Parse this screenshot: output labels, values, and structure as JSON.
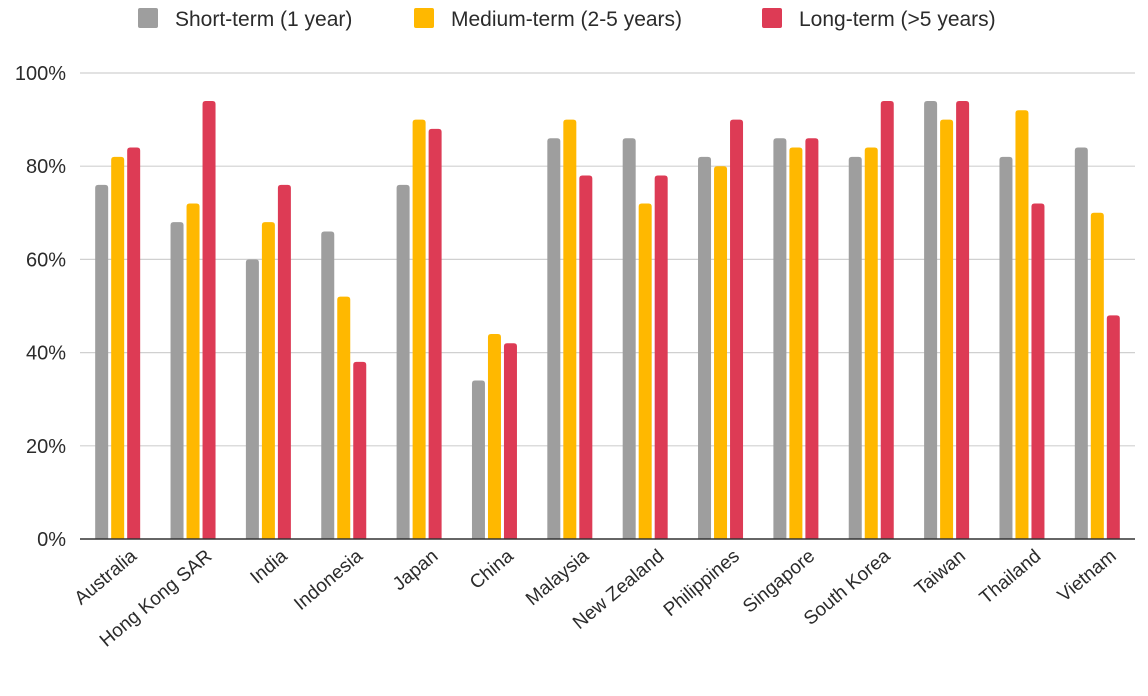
{
  "colors": {
    "short": "#9e9e9e",
    "medium": "#ffb800",
    "long": "#dd3b55",
    "grid": "#d0d0d0",
    "baseline": "#333333"
  },
  "chart_data": {
    "type": "bar",
    "title": "",
    "xlabel": "",
    "ylabel": "",
    "ylim": [
      0,
      100
    ],
    "yticks": [
      0,
      20,
      40,
      60,
      80,
      100
    ],
    "ytick_labels": [
      "0%",
      "20%",
      "40%",
      "60%",
      "80%",
      "100%"
    ],
    "grid": true,
    "legend_position": "top",
    "categories": [
      "Australia",
      "Hong Kong SAR",
      "India",
      "Indonesia",
      "Japan",
      "China",
      "Malaysia",
      "New Zealand",
      "Philippines",
      "Singapore",
      "South Korea",
      "Taiwan",
      "Thailand",
      "Vietnam"
    ],
    "series": [
      {
        "name": "Short-term (1 year)",
        "color": "#9e9e9e",
        "values": [
          76,
          68,
          60,
          66,
          76,
          34,
          86,
          86,
          82,
          86,
          82,
          94,
          82,
          84
        ]
      },
      {
        "name": "Medium-term (2-5 years)",
        "color": "#ffb800",
        "values": [
          82,
          72,
          68,
          52,
          90,
          44,
          90,
          72,
          80,
          84,
          84,
          90,
          92,
          70
        ]
      },
      {
        "name": "Long-term (>5 years)",
        "color": "#dd3b55",
        "values": [
          84,
          94,
          76,
          38,
          88,
          42,
          78,
          78,
          90,
          86,
          94,
          94,
          72,
          48
        ]
      }
    ]
  }
}
